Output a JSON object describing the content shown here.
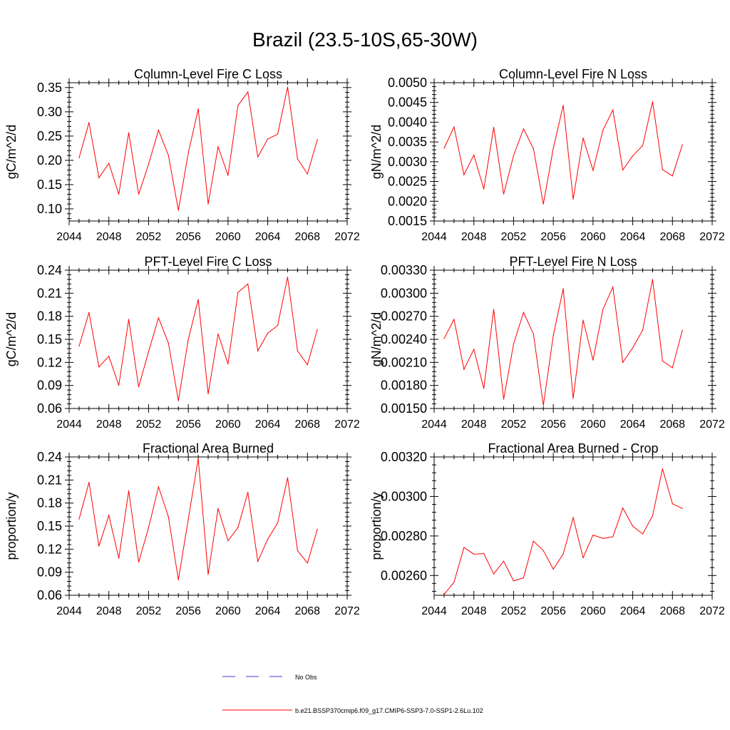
{
  "title": "Brazil (23.5-10S,65-30W)",
  "colors": {
    "model_line": "#ff0000",
    "obs_line": "#3b3bd6",
    "axis": "#000000"
  },
  "legend": {
    "obs_label": "No Obs",
    "model_label": "b.e21.BSSP370cmip6.f09_g17.CMIP6-SSP3-7.0-SSP1-2.6Lu.102"
  },
  "chart_data": [
    {
      "type": "line",
      "title": "Column-Level Fire C Loss",
      "ylabel": "gC/m^2/d",
      "xlim": [
        2044,
        2072
      ],
      "ylim": [
        0.075,
        0.36
      ],
      "xticks": [
        2044,
        2048,
        2052,
        2056,
        2060,
        2064,
        2068,
        2072
      ],
      "yticks": [
        0.1,
        0.15,
        0.2,
        0.25,
        0.3,
        0.35
      ],
      "ytick_labels": [
        "0.10",
        "0.15",
        "0.20",
        "0.25",
        "0.30",
        "0.35"
      ],
      "x": [
        2045,
        2046,
        2047,
        2048,
        2049,
        2050,
        2051,
        2052,
        2053,
        2054,
        2055,
        2056,
        2057,
        2058,
        2059,
        2060,
        2061,
        2062,
        2063,
        2064,
        2065,
        2066,
        2067,
        2068,
        2069
      ],
      "series": [
        {
          "values": [
            0.205,
            0.278,
            0.164,
            0.194,
            0.13,
            0.257,
            0.13,
            0.192,
            0.262,
            0.21,
            0.097,
            0.215,
            0.306,
            0.11,
            0.228,
            0.169,
            0.313,
            0.341,
            0.207,
            0.244,
            0.254,
            0.351,
            0.203,
            0.172,
            0.243
          ]
        }
      ]
    },
    {
      "type": "line",
      "title": "Column-Level Fire N Loss",
      "ylabel": "gN/m^2/d",
      "xlim": [
        2044,
        2072
      ],
      "ylim": [
        0.0015,
        0.005
      ],
      "xticks": [
        2044,
        2048,
        2052,
        2056,
        2060,
        2064,
        2068,
        2072
      ],
      "yticks": [
        0.0015,
        0.002,
        0.0025,
        0.003,
        0.0035,
        0.004,
        0.0045,
        0.005
      ],
      "ytick_labels": [
        "0.0015",
        "0.0020",
        "0.0025",
        "0.0030",
        "0.0035",
        "0.0040",
        "0.0045",
        "0.0050"
      ],
      "x": [
        2045,
        2046,
        2047,
        2048,
        2049,
        2050,
        2051,
        2052,
        2053,
        2054,
        2055,
        2056,
        2057,
        2058,
        2059,
        2060,
        2061,
        2062,
        2063,
        2064,
        2065,
        2066,
        2067,
        2068,
        2069
      ],
      "series": [
        {
          "values": [
            0.00334,
            0.00388,
            0.00267,
            0.00317,
            0.00231,
            0.00387,
            0.00218,
            0.00316,
            0.00383,
            0.00333,
            0.00193,
            0.00334,
            0.00443,
            0.00205,
            0.0036,
            0.00278,
            0.0038,
            0.00431,
            0.00279,
            0.00315,
            0.00341,
            0.00452,
            0.0028,
            0.00264,
            0.00343
          ]
        }
      ]
    },
    {
      "type": "line",
      "title": "PFT-Level Fire C Loss",
      "ylabel": "gC/m^2/d",
      "xlim": [
        2044,
        2072
      ],
      "ylim": [
        0.06,
        0.24
      ],
      "xticks": [
        2044,
        2048,
        2052,
        2056,
        2060,
        2064,
        2068,
        2072
      ],
      "yticks": [
        0.06,
        0.09,
        0.12,
        0.15,
        0.18,
        0.21,
        0.24
      ],
      "ytick_labels": [
        "0.06",
        "0.09",
        "0.12",
        "0.15",
        "0.18",
        "0.21",
        "0.24"
      ],
      "x": [
        2045,
        2046,
        2047,
        2048,
        2049,
        2050,
        2051,
        2052,
        2053,
        2054,
        2055,
        2056,
        2057,
        2058,
        2059,
        2060,
        2061,
        2062,
        2063,
        2064,
        2065,
        2066,
        2067,
        2068,
        2069
      ],
      "series": [
        {
          "values": [
            0.141,
            0.185,
            0.114,
            0.128,
            0.09,
            0.176,
            0.088,
            0.134,
            0.178,
            0.145,
            0.07,
            0.15,
            0.202,
            0.079,
            0.157,
            0.118,
            0.211,
            0.222,
            0.135,
            0.158,
            0.168,
            0.231,
            0.135,
            0.117,
            0.163
          ]
        }
      ]
    },
    {
      "type": "line",
      "title": "PFT-Level Fire N Loss",
      "ylabel": "gN/m^2/d",
      "xlim": [
        2044,
        2072
      ],
      "ylim": [
        0.0015,
        0.0033
      ],
      "xticks": [
        2044,
        2048,
        2052,
        2056,
        2060,
        2064,
        2068,
        2072
      ],
      "yticks": [
        0.0015,
        0.0018,
        0.0021,
        0.0024,
        0.0027,
        0.003,
        0.0033
      ],
      "ytick_labels": [
        "0.00150",
        "0.00180",
        "0.00210",
        "0.00240",
        "0.00270",
        "0.00300",
        "0.00330"
      ],
      "x": [
        2045,
        2046,
        2047,
        2048,
        2049,
        2050,
        2051,
        2052,
        2053,
        2054,
        2055,
        2056,
        2057,
        2058,
        2059,
        2060,
        2061,
        2062,
        2063,
        2064,
        2065,
        2066,
        2067,
        2068,
        2069
      ],
      "series": [
        {
          "values": [
            0.00241,
            0.00266,
            0.00201,
            0.00227,
            0.00176,
            0.00279,
            0.00162,
            0.00234,
            0.00275,
            0.00247,
            0.00154,
            0.00245,
            0.00306,
            0.00163,
            0.00265,
            0.00213,
            0.00279,
            0.00308,
            0.0021,
            0.00229,
            0.00252,
            0.00318,
            0.00212,
            0.00203,
            0.00252
          ]
        }
      ]
    },
    {
      "type": "line",
      "title": "Fractional Area Burned",
      "ylabel": "proportion/y",
      "xlim": [
        2044,
        2072
      ],
      "ylim": [
        0.06,
        0.24
      ],
      "xticks": [
        2044,
        2048,
        2052,
        2056,
        2060,
        2064,
        2068,
        2072
      ],
      "yticks": [
        0.06,
        0.09,
        0.12,
        0.15,
        0.18,
        0.21,
        0.24
      ],
      "ytick_labels": [
        "0.06",
        "0.09",
        "0.12",
        "0.15",
        "0.18",
        "0.21",
        "0.24"
      ],
      "x": [
        2045,
        2046,
        2047,
        2048,
        2049,
        2050,
        2051,
        2052,
        2053,
        2054,
        2055,
        2056,
        2057,
        2058,
        2059,
        2060,
        2061,
        2062,
        2063,
        2064,
        2065,
        2066,
        2067,
        2068,
        2069
      ],
      "series": [
        {
          "values": [
            0.159,
            0.207,
            0.124,
            0.164,
            0.108,
            0.196,
            0.103,
            0.148,
            0.201,
            0.162,
            0.08,
            0.159,
            0.238,
            0.087,
            0.173,
            0.131,
            0.148,
            0.194,
            0.104,
            0.133,
            0.154,
            0.213,
            0.118,
            0.102,
            0.146
          ]
        }
      ]
    },
    {
      "type": "line",
      "title": "Fractional Area Burned - Crop",
      "ylabel": "proportion/y",
      "xlim": [
        2044,
        2072
      ],
      "ylim": [
        0.0025,
        0.0032
      ],
      "xticks": [
        2044,
        2048,
        2052,
        2056,
        2060,
        2064,
        2068,
        2072
      ],
      "yticks": [
        0.0026,
        0.0028,
        0.003,
        0.0032
      ],
      "ytick_labels": [
        "0.00260",
        "0.00280",
        "0.00300",
        "0.00320"
      ],
      "x": [
        2045,
        2046,
        2047,
        2048,
        2049,
        2050,
        2051,
        2052,
        2053,
        2054,
        2055,
        2056,
        2057,
        2058,
        2059,
        2060,
        2061,
        2062,
        2063,
        2064,
        2065,
        2066,
        2067,
        2068,
        2069
      ],
      "series": [
        {
          "values": [
            0.002504,
            0.002566,
            0.002742,
            0.002708,
            0.002711,
            0.002608,
            0.002673,
            0.002573,
            0.002588,
            0.002774,
            0.002726,
            0.002632,
            0.002709,
            0.002893,
            0.00269,
            0.002805,
            0.002788,
            0.002796,
            0.002941,
            0.00285,
            0.00281,
            0.002903,
            0.00314,
            0.002963,
            0.002939
          ]
        }
      ]
    }
  ]
}
